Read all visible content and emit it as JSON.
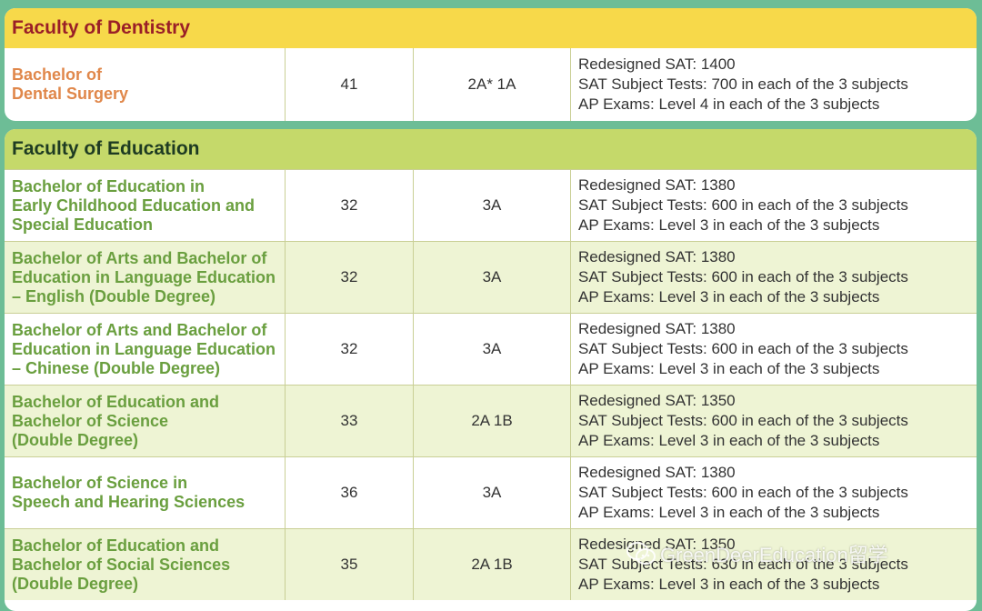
{
  "dentistry": {
    "title": "Faculty of Dentistry",
    "rows": [
      {
        "programme": "Bachelor of\nDental Surgery",
        "ib": "41",
        "alevel": "2A* 1A",
        "sat": "Redesigned SAT: 1400",
        "subject": "SAT Subject Tests: 700 in each of the 3 subjects",
        "ap": "AP Exams: Level 4 in each of the 3 subjects"
      }
    ]
  },
  "education": {
    "title": "Faculty of Education",
    "rows": [
      {
        "programme": "Bachelor of Education in\nEarly Childhood Education and\nSpecial Education",
        "ib": "32",
        "alevel": "3A",
        "sat": "Redesigned SAT: 1380",
        "subject": "SAT Subject Tests: 600 in each of the 3 subjects",
        "ap": "AP Exams: Level 3 in each of the 3 subjects"
      },
      {
        "programme": "Bachelor of Arts and Bachelor of\nEducation in Language Education\n– English (Double Degree)",
        "ib": "32",
        "alevel": "3A",
        "sat": "Redesigned SAT: 1380",
        "subject": "SAT Subject Tests: 600 in each of the 3 subjects",
        "ap": "AP Exams: Level 3 in each of the 3 subjects"
      },
      {
        "programme": "Bachelor of Arts and Bachelor of\nEducation in Language Education\n– Chinese (Double Degree)",
        "ib": "32",
        "alevel": "3A",
        "sat": "Redesigned SAT: 1380",
        "subject": "SAT Subject Tests: 600 in each of the 3 subjects",
        "ap": "AP Exams: Level 3 in each of the 3 subjects"
      },
      {
        "programme": "Bachelor of Education and\nBachelor of Science\n(Double Degree)",
        "ib": "33",
        "alevel": "2A 1B",
        "sat": "Redesigned SAT: 1350",
        "subject": "SAT Subject Tests: 600 in each of the 3 subjects",
        "ap": "AP Exams: Level 3 in each of the 3 subjects"
      },
      {
        "programme": "Bachelor of Science in\nSpeech and Hearing Sciences",
        "ib": "36",
        "alevel": "3A",
        "sat": "Redesigned SAT: 1380",
        "subject": "SAT Subject Tests: 600 in each of the 3 subjects",
        "ap": "AP Exams: Level 3 in each of the 3 subjects"
      },
      {
        "programme": "Bachelor of Education and\nBachelor of Social Sciences\n(Double Degree)",
        "ib": "35",
        "alevel": "2A 1B",
        "sat": "Redesigned SAT: 1350",
        "subject": "SAT Subject Tests: 630 in each of the 3 subjects",
        "ap": "AP Exams: Level 3 in each of the 3 subjects"
      }
    ]
  },
  "watermark": {
    "text": "GreenDeerEducation留学",
    "icon": "wechat-icon"
  }
}
